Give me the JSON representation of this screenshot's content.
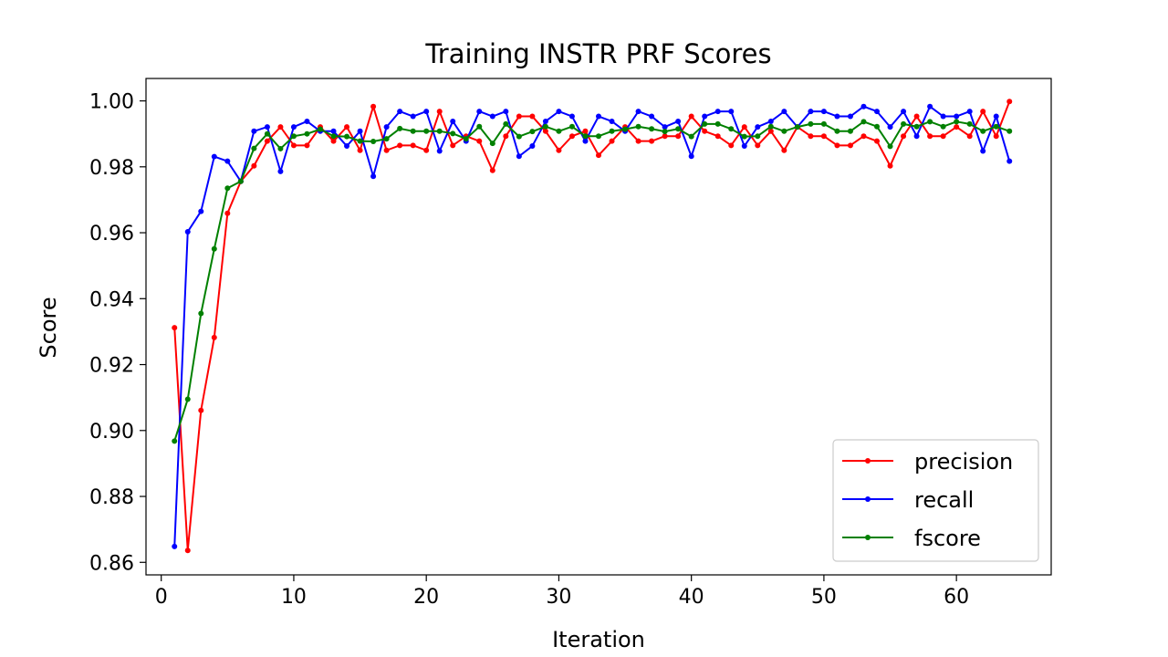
{
  "chart_data": {
    "type": "line",
    "title": "Training INSTR PRF Scores",
    "xlabel": "Iteration",
    "ylabel": "Score",
    "xlim": [
      -1.15,
      67.15
    ],
    "ylim": [
      0.8562,
      1.0068
    ],
    "x_ticks": [
      "0",
      "10",
      "20",
      "30",
      "40",
      "50",
      "60"
    ],
    "y_ticks": [
      "0.86",
      "0.88",
      "0.90",
      "0.92",
      "0.94",
      "0.96",
      "0.98",
      "1.00"
    ],
    "grid": false,
    "legend_position": "lower-right",
    "x": [
      1,
      2,
      3,
      4,
      5,
      6,
      7,
      8,
      9,
      10,
      11,
      12,
      13,
      14,
      15,
      16,
      17,
      18,
      19,
      20,
      21,
      22,
      23,
      24,
      25,
      26,
      27,
      28,
      29,
      30,
      31,
      32,
      33,
      34,
      35,
      36,
      37,
      38,
      39,
      40,
      41,
      42,
      43,
      44,
      45,
      46,
      47,
      48,
      49,
      50,
      51,
      52,
      53,
      54,
      55,
      56,
      57,
      58,
      59,
      60,
      61,
      62,
      63,
      64
    ],
    "series": [
      {
        "name": "precision",
        "color": "#ff0000",
        "values": [
          0.9312,
          0.8636,
          0.9061,
          0.9282,
          0.9659,
          0.9756,
          0.9803,
          0.9878,
          0.9921,
          0.9865,
          0.9865,
          0.9921,
          0.9878,
          0.9921,
          0.985,
          0.9983,
          0.985,
          0.9865,
          0.9865,
          0.985,
          0.9968,
          0.9865,
          0.9893,
          0.9878,
          0.9789,
          0.9893,
          0.9953,
          0.9953,
          0.9908,
          0.985,
          0.9893,
          0.9908,
          0.9835,
          0.9878,
          0.9921,
          0.9878,
          0.9878,
          0.9893,
          0.9893,
          0.9953,
          0.9908,
          0.9893,
          0.9865,
          0.9921,
          0.9865,
          0.9908,
          0.985,
          0.9921,
          0.9893,
          0.9893,
          0.9865,
          0.9865,
          0.9893,
          0.9878,
          0.9803,
          0.9893,
          0.9953,
          0.9893,
          0.9893,
          0.9921,
          0.9893,
          0.9968,
          0.9893,
          0.9998
        ]
      },
      {
        "name": "recall",
        "color": "#0000ff",
        "values": [
          0.8648,
          0.9603,
          0.9665,
          0.9831,
          0.9817,
          0.9756,
          0.9908,
          0.9921,
          0.9786,
          0.9921,
          0.9938,
          0.9908,
          0.9908,
          0.9863,
          0.9908,
          0.9771,
          0.9921,
          0.9968,
          0.9953,
          0.9968,
          0.9848,
          0.9938,
          0.9878,
          0.9968,
          0.9953,
          0.9968,
          0.9832,
          0.9863,
          0.9938,
          0.9968,
          0.9953,
          0.9878,
          0.9953,
          0.9938,
          0.9908,
          0.9968,
          0.9953,
          0.9921,
          0.9938,
          0.9832,
          0.9953,
          0.9968,
          0.9968,
          0.9863,
          0.9921,
          0.9938,
          0.9968,
          0.9921,
          0.9968,
          0.9968,
          0.9953,
          0.9953,
          0.9983,
          0.9968,
          0.9921,
          0.9968,
          0.9893,
          0.9983,
          0.9953,
          0.9953,
          0.9968,
          0.9848,
          0.9953,
          0.9817
        ]
      },
      {
        "name": "fscore",
        "color": "#008000",
        "values": [
          0.8968,
          0.9095,
          0.9355,
          0.9551,
          0.9735,
          0.9756,
          0.9856,
          0.99,
          0.9855,
          0.9893,
          0.99,
          0.9914,
          0.9893,
          0.9892,
          0.9878,
          0.9877,
          0.9885,
          0.9916,
          0.9908,
          0.9908,
          0.9908,
          0.9901,
          0.9885,
          0.9922,
          0.9871,
          0.993,
          0.9892,
          0.9907,
          0.9922,
          0.9908,
          0.9922,
          0.9893,
          0.9893,
          0.9908,
          0.9914,
          0.9922,
          0.9915,
          0.9907,
          0.9915,
          0.9892,
          0.993,
          0.993,
          0.9915,
          0.9892,
          0.9893,
          0.9922,
          0.9908,
          0.9921,
          0.993,
          0.993,
          0.9908,
          0.9908,
          0.9937,
          0.9922,
          0.9862,
          0.993,
          0.9922,
          0.9937,
          0.9922,
          0.9937,
          0.993,
          0.9908,
          0.9922,
          0.9908
        ]
      }
    ]
  }
}
